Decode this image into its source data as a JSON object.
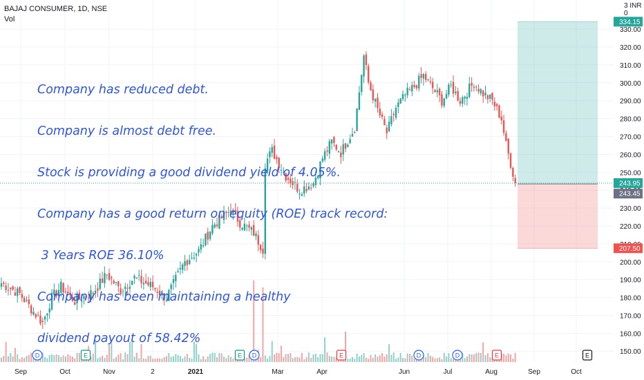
{
  "header": {
    "symbol": "BAJAJ CONSUMER, 1D, NSE",
    "volume_label": "Vol"
  },
  "price_scale": {
    "currency": "INR",
    "currency_marker": "3",
    "top_marker": "0"
  },
  "annotation_lines": [
    "Company has reduced debt.",
    "Company is almost debt free.",
    "Stock is providing a good dividend yield of 4.05%.",
    "Company has a good return on equity (ROE) track record:",
    " 3 Years ROE 36.10%",
    "Company has been maintaining a healthy",
    "dividend payout of 58.42%"
  ],
  "chart_data": {
    "type": "candlestick",
    "y_ticks": [
      150,
      160,
      170,
      180,
      190,
      200,
      210,
      220,
      230,
      240,
      250,
      260,
      270,
      280,
      290,
      300,
      310,
      320,
      330
    ],
    "ylim": [
      147,
      337
    ],
    "x_tick_labels": [
      "Sep",
      "Oct",
      "Nov",
      "2",
      "2021",
      "Mar",
      "Apr",
      "Jun",
      "Jul",
      "Aug",
      "Sep",
      "Oct"
    ],
    "price_path": [
      [
        0,
        188
      ],
      [
        8,
        182
      ],
      [
        14,
        172
      ],
      [
        18,
        166
      ],
      [
        22,
        180
      ],
      [
        26,
        186
      ],
      [
        32,
        178
      ],
      [
        40,
        183
      ],
      [
        46,
        193
      ],
      [
        52,
        184
      ],
      [
        58,
        191
      ],
      [
        66,
        186
      ],
      [
        72,
        180
      ],
      [
        80,
        200
      ],
      [
        86,
        206
      ],
      [
        92,
        220
      ],
      [
        100,
        229
      ],
      [
        104,
        222
      ],
      [
        110,
        216
      ],
      [
        114,
        207
      ],
      [
        115,
        255
      ],
      [
        118,
        262
      ],
      [
        124,
        248
      ],
      [
        130,
        240
      ],
      [
        136,
        244
      ],
      [
        140,
        258
      ],
      [
        144,
        267
      ],
      [
        148,
        261
      ],
      [
        154,
        275
      ],
      [
        158,
        315
      ],
      [
        160,
        300
      ],
      [
        164,
        285
      ],
      [
        168,
        272
      ],
      [
        172,
        286
      ],
      [
        176,
        293
      ],
      [
        180,
        298
      ],
      [
        184,
        304
      ],
      [
        188,
        297
      ],
      [
        192,
        290
      ],
      [
        196,
        298
      ],
      [
        200,
        290
      ],
      [
        206,
        300
      ],
      [
        210,
        294
      ],
      [
        214,
        290
      ],
      [
        218,
        280
      ],
      [
        220,
        265
      ],
      [
        222,
        255
      ],
      [
        224,
        244
      ]
    ],
    "first_date_index": 0,
    "last_date_index": 224,
    "last_price": 243.95,
    "position": {
      "type": "long",
      "entry": 243.45,
      "target": 334.15,
      "stop": 207.5
    },
    "price_labels": [
      {
        "text": "334.15",
        "value": 334.15,
        "color": "#26a69a"
      },
      {
        "text": "243.95",
        "value": 243.95,
        "color": "#26a69a"
      },
      {
        "text": "243.45",
        "value": 243.45,
        "color": "#6c7284"
      },
      {
        "text": "207.50",
        "value": 207.5,
        "color": "#ef5350"
      }
    ],
    "events": [
      {
        "letter": "D",
        "kind": "dividend",
        "color": "#2962ff"
      },
      {
        "letter": "E",
        "kind": "earnings",
        "color": "#089981"
      },
      {
        "letter": "E",
        "kind": "earnings",
        "color": "#089981"
      },
      {
        "letter": "D",
        "kind": "dividend",
        "color": "#2962ff"
      },
      {
        "letter": "E",
        "kind": "earnings",
        "color": "#f23645"
      },
      {
        "letter": "D",
        "kind": "dividend",
        "color": "#2962ff"
      },
      {
        "letter": "D",
        "kind": "dividend",
        "color": "#2962ff"
      },
      {
        "letter": "E",
        "kind": "earnings",
        "color": "#f23645"
      },
      {
        "letter": "E",
        "kind": "earnings",
        "color": "#131722"
      }
    ],
    "colors": {
      "up": "#26a69a",
      "down": "#ef5350",
      "target_zone": "rgba(38,166,154,0.22)",
      "stop_zone": "rgba(239,83,80,0.22)",
      "grid": "#f0f3fa",
      "axis_text": "#131722"
    }
  }
}
